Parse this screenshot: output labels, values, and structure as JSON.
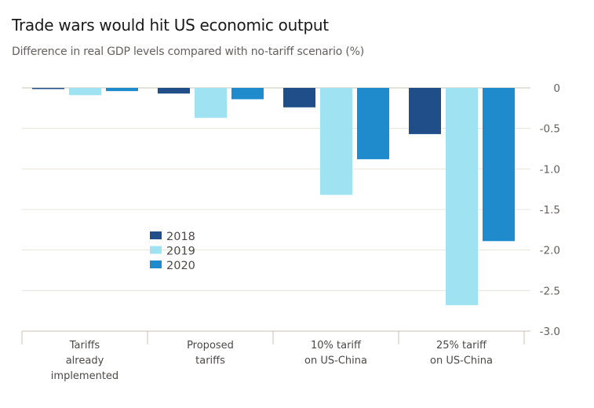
{
  "header": {
    "title": "Trade wars would hit US economic output",
    "subtitle": "Difference in real GDP levels compared with no-tariff scenario (%)"
  },
  "chart_data": {
    "type": "bar",
    "title": "Trade wars would hit US economic output",
    "subtitle": "Difference in real GDP levels compared with no-tariff scenario (%)",
    "xlabel": "",
    "ylabel": "",
    "categories": [
      [
        "Tariffs",
        "already",
        "implemented"
      ],
      [
        "Proposed",
        "tariffs"
      ],
      [
        "10% tariff",
        "on US-China"
      ],
      [
        "25% tariff",
        "on US-China"
      ]
    ],
    "series": [
      {
        "name": "2018",
        "color": "#1f4e89",
        "values": [
          -0.01,
          -0.07,
          -0.24,
          -0.57
        ]
      },
      {
        "name": "2019",
        "color": "#9fe3f2",
        "values": [
          -0.09,
          -0.37,
          -1.32,
          -2.68
        ]
      },
      {
        "name": "2020",
        "color": "#1f8bcc",
        "values": [
          -0.04,
          -0.14,
          -0.88,
          -1.89
        ]
      }
    ],
    "ylim": [
      -3.0,
      0
    ],
    "yticks": [
      0,
      -0.5,
      -1.0,
      -1.5,
      -2.0,
      -2.5,
      -3.0
    ],
    "ytick_labels": [
      "0",
      "-0.5",
      "-1.0",
      "-1.5",
      "-2.0",
      "-2.5",
      "-3.0"
    ],
    "y_axis_side": "right",
    "grid": true,
    "legend_position": "center-left"
  }
}
